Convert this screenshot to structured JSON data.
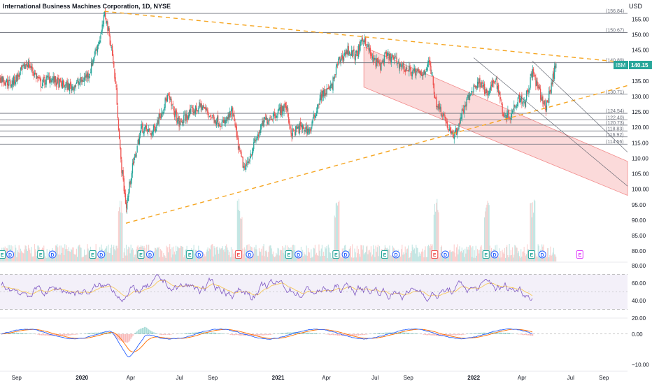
{
  "header": {
    "title": "International Business Machines Corporation, 1D, NYSE",
    "currency": "USD"
  },
  "colors": {
    "up": "#26a69a",
    "down": "#ef5350",
    "trendline": "#f5a623",
    "channel": "#f28b8b",
    "rsi": "#7e57c2",
    "rsi_ma": "#f7c95c",
    "macd": "#2962ff",
    "signal": "#ff6d00",
    "earnings": "#26a69a",
    "dividend": "#2962ff",
    "future_event": "#e040fb"
  },
  "chart_data": [
    {
      "type": "candlestick",
      "name": "price",
      "ticker": "IBM",
      "last_price": 140.15,
      "ylim": [
        78,
        158
      ],
      "y_ticks": [
        80,
        85,
        90,
        95,
        100,
        105,
        110,
        115,
        120,
        125,
        130,
        135,
        140,
        145,
        150,
        155
      ],
      "x_labels": [
        "Sep",
        "2020",
        "Apr",
        "Jul",
        "Sep",
        "2021",
        "Apr",
        "Jul",
        "Sep",
        "2022",
        "Apr",
        "Jul",
        "Sep"
      ],
      "x_label_bold": [
        "2020",
        "2021",
        "2022"
      ],
      "x_domain": [
        "2019-08-01",
        "2022-10-15"
      ],
      "x_label_dates": [
        "2019-09-01",
        "2020-01-01",
        "2020-04-01",
        "2020-07-01",
        "2020-09-01",
        "2021-01-01",
        "2021-04-01",
        "2021-07-01",
        "2021-09-01",
        "2022-01-01",
        "2022-04-01",
        "2022-07-01",
        "2022-09-01"
      ],
      "series": [
        {
          "x": "2019-08-01",
          "y": 136
        },
        {
          "x": "2019-08-20",
          "y": 134
        },
        {
          "x": "2019-09-05",
          "y": 137
        },
        {
          "x": "2019-09-20",
          "y": 141
        },
        {
          "x": "2019-10-05",
          "y": 137
        },
        {
          "x": "2019-10-15",
          "y": 134
        },
        {
          "x": "2019-11-01",
          "y": 136
        },
        {
          "x": "2019-11-20",
          "y": 134
        },
        {
          "x": "2019-12-10",
          "y": 133
        },
        {
          "x": "2019-12-31",
          "y": 135
        },
        {
          "x": "2020-01-15",
          "y": 138
        },
        {
          "x": "2020-01-22",
          "y": 143
        },
        {
          "x": "2020-02-05",
          "y": 150
        },
        {
          "x": "2020-02-12",
          "y": 157
        },
        {
          "x": "2020-02-25",
          "y": 145
        },
        {
          "x": "2020-03-05",
          "y": 130
        },
        {
          "x": "2020-03-12",
          "y": 110
        },
        {
          "x": "2020-03-23",
          "y": 94
        },
        {
          "x": "2020-04-01",
          "y": 105
        },
        {
          "x": "2020-04-20",
          "y": 120
        },
        {
          "x": "2020-05-10",
          "y": 118
        },
        {
          "x": "2020-06-08",
          "y": 130
        },
        {
          "x": "2020-06-30",
          "y": 121
        },
        {
          "x": "2020-07-15",
          "y": 124
        },
        {
          "x": "2020-08-10",
          "y": 127
        },
        {
          "x": "2020-09-01",
          "y": 123
        },
        {
          "x": "2020-09-20",
          "y": 121
        },
        {
          "x": "2020-10-07",
          "y": 125
        },
        {
          "x": "2020-10-20",
          "y": 112
        },
        {
          "x": "2020-10-30",
          "y": 106
        },
        {
          "x": "2020-11-15",
          "y": 114
        },
        {
          "x": "2020-12-05",
          "y": 122
        },
        {
          "x": "2020-12-31",
          "y": 125
        },
        {
          "x": "2021-01-15",
          "y": 127
        },
        {
          "x": "2021-01-25",
          "y": 118
        },
        {
          "x": "2021-02-10",
          "y": 120
        },
        {
          "x": "2021-03-01",
          "y": 119
        },
        {
          "x": "2021-03-20",
          "y": 130
        },
        {
          "x": "2021-04-10",
          "y": 133
        },
        {
          "x": "2021-04-22",
          "y": 141
        },
        {
          "x": "2021-05-10",
          "y": 145
        },
        {
          "x": "2021-05-25",
          "y": 143
        },
        {
          "x": "2021-06-10",
          "y": 149
        },
        {
          "x": "2021-06-25",
          "y": 142
        },
        {
          "x": "2021-07-10",
          "y": 140
        },
        {
          "x": "2021-07-20",
          "y": 143
        },
        {
          "x": "2021-08-05",
          "y": 142
        },
        {
          "x": "2021-08-25",
          "y": 139
        },
        {
          "x": "2021-09-10",
          "y": 138
        },
        {
          "x": "2021-09-25",
          "y": 137
        },
        {
          "x": "2021-10-10",
          "y": 141
        },
        {
          "x": "2021-10-22",
          "y": 128
        },
        {
          "x": "2021-11-05",
          "y": 124
        },
        {
          "x": "2021-11-20",
          "y": 117
        },
        {
          "x": "2021-11-30",
          "y": 119
        },
        {
          "x": "2021-12-10",
          "y": 125
        },
        {
          "x": "2021-12-31",
          "y": 133
        },
        {
          "x": "2022-01-15",
          "y": 135
        },
        {
          "x": "2022-01-25",
          "y": 130
        },
        {
          "x": "2022-02-10",
          "y": 136
        },
        {
          "x": "2022-02-25",
          "y": 124
        },
        {
          "x": "2022-03-10",
          "y": 124
        },
        {
          "x": "2022-03-25",
          "y": 130
        },
        {
          "x": "2022-04-05",
          "y": 128
        },
        {
          "x": "2022-04-20",
          "y": 138
        },
        {
          "x": "2022-05-01",
          "y": 132
        },
        {
          "x": "2022-05-15",
          "y": 126
        },
        {
          "x": "2022-05-25",
          "y": 134
        },
        {
          "x": "2022-06-02",
          "y": 140
        }
      ],
      "h_levels": [
        156.84,
        150.67,
        140.89,
        130.71,
        124.54,
        122.4,
        120.73,
        118.83,
        116.92,
        114.56
      ],
      "h_level_labels": [
        "156.84",
        "150.67",
        "140.89",
        "130.71",
        "124.54",
        "122.40",
        "120.73",
        "118.83",
        "116.92",
        "114.56"
      ],
      "trendlines": [
        {
          "style": "dashed",
          "points": [
            {
              "x": "2020-02-12",
              "y": 157.5
            },
            {
              "x": "2022-10-15",
              "y": 140.9
            }
          ]
        },
        {
          "style": "dashed",
          "points": [
            {
              "x": "2020-03-23",
              "y": 89
            },
            {
              "x": "2022-10-15",
              "y": 133.5
            }
          ]
        },
        {
          "style": "solid",
          "points": [
            {
              "x": "2022-01-01",
              "y": 142.5
            },
            {
              "x": "2022-10-15",
              "y": 101
            }
          ]
        },
        {
          "style": "solid",
          "points": [
            {
              "x": "2022-04-20",
              "y": 141.5
            },
            {
              "x": "2022-10-15",
              "y": 112
            }
          ]
        }
      ],
      "channel": {
        "upper": [
          {
            "x": "2021-06-10",
            "y": 146
          },
          {
            "x": "2022-10-15",
            "y": 109
          }
        ],
        "lower": [
          {
            "x": "2021-06-10",
            "y": 133
          },
          {
            "x": "2022-10-15",
            "y": 98
          }
        ]
      },
      "volume_spikes": [
        "2020-03-12",
        "2020-10-20",
        "2021-04-20",
        "2021-10-22",
        "2022-01-25",
        "2022-04-20"
      ]
    },
    {
      "type": "line",
      "name": "rsi",
      "ylim": [
        20,
        80
      ],
      "y_ticks": [
        20,
        40,
        60,
        80
      ],
      "y_tick_labels": [
        "20.00",
        "40.00",
        "60.00",
        "80.00"
      ],
      "band": [
        30,
        70
      ],
      "midline": 50
    },
    {
      "type": "line",
      "name": "macd",
      "ylim": [
        -12,
        5
      ],
      "y_ticks": [
        0,
        -10
      ],
      "y_tick_labels": [
        "0.00",
        "−10.00"
      ]
    }
  ],
  "events": [
    {
      "x": "2019-08-05",
      "type": "earnings",
      "label": "E"
    },
    {
      "x": "2019-08-20",
      "type": "dividend",
      "label": "D"
    },
    {
      "x": "2019-10-16",
      "type": "earnings",
      "label": "E"
    },
    {
      "x": "2019-11-07",
      "type": "dividend",
      "label": "D"
    },
    {
      "x": "2020-01-21",
      "type": "earnings",
      "label": "E"
    },
    {
      "x": "2020-02-06",
      "type": "dividend",
      "label": "D"
    },
    {
      "x": "2020-04-20",
      "type": "earnings",
      "label": "E"
    },
    {
      "x": "2020-05-07",
      "type": "dividend",
      "label": "D"
    },
    {
      "x": "2020-07-20",
      "type": "earnings",
      "label": "E"
    },
    {
      "x": "2020-08-07",
      "type": "dividend",
      "label": "D"
    },
    {
      "x": "2020-10-19",
      "type": "earnings_miss",
      "label": "E"
    },
    {
      "x": "2020-11-09",
      "type": "dividend",
      "label": "D"
    },
    {
      "x": "2021-01-21",
      "type": "earnings",
      "label": "E"
    },
    {
      "x": "2021-02-08",
      "type": "dividend",
      "label": "D"
    },
    {
      "x": "2021-04-19",
      "type": "earnings",
      "label": "E"
    },
    {
      "x": "2021-05-07",
      "type": "dividend",
      "label": "D"
    },
    {
      "x": "2021-07-19",
      "type": "earnings",
      "label": "E"
    },
    {
      "x": "2021-08-09",
      "type": "dividend",
      "label": "D"
    },
    {
      "x": "2021-10-20",
      "type": "earnings_miss",
      "label": "E"
    },
    {
      "x": "2021-11-09",
      "type": "dividend",
      "label": "D"
    },
    {
      "x": "2022-01-24",
      "type": "earnings",
      "label": "E"
    },
    {
      "x": "2022-02-09",
      "type": "dividend",
      "label": "D"
    },
    {
      "x": "2022-04-19",
      "type": "earnings",
      "label": "E"
    },
    {
      "x": "2022-05-09",
      "type": "dividend",
      "label": "D"
    },
    {
      "x": "2022-07-18",
      "type": "future",
      "label": "E"
    }
  ]
}
